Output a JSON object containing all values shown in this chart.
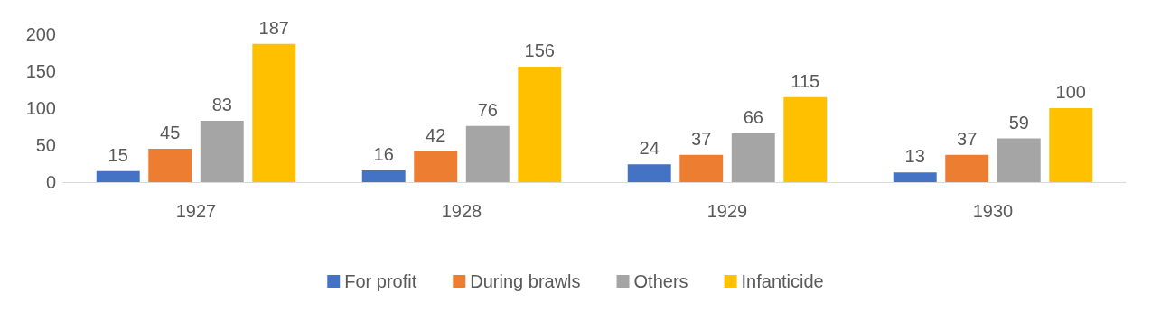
{
  "chart_data": {
    "type": "bar",
    "categories": [
      "1927",
      "1928",
      "1929",
      "1930"
    ],
    "series": [
      {
        "name": "For profit",
        "color": "#4472c4",
        "values": [
          15,
          16,
          24,
          13
        ]
      },
      {
        "name": "During brawls",
        "color": "#ed7d31",
        "values": [
          45,
          42,
          37,
          37
        ]
      },
      {
        "name": "Others",
        "color": "#a5a5a5",
        "values": [
          83,
          76,
          66,
          59
        ]
      },
      {
        "name": "Infanticide",
        "color": "#ffc000",
        "values": [
          187,
          156,
          115,
          100
        ]
      }
    ],
    "ylim": [
      0,
      200
    ],
    "yticks": [
      0,
      50,
      100,
      150,
      200
    ],
    "grid": false,
    "legend": "bottom",
    "data_labels": true
  }
}
